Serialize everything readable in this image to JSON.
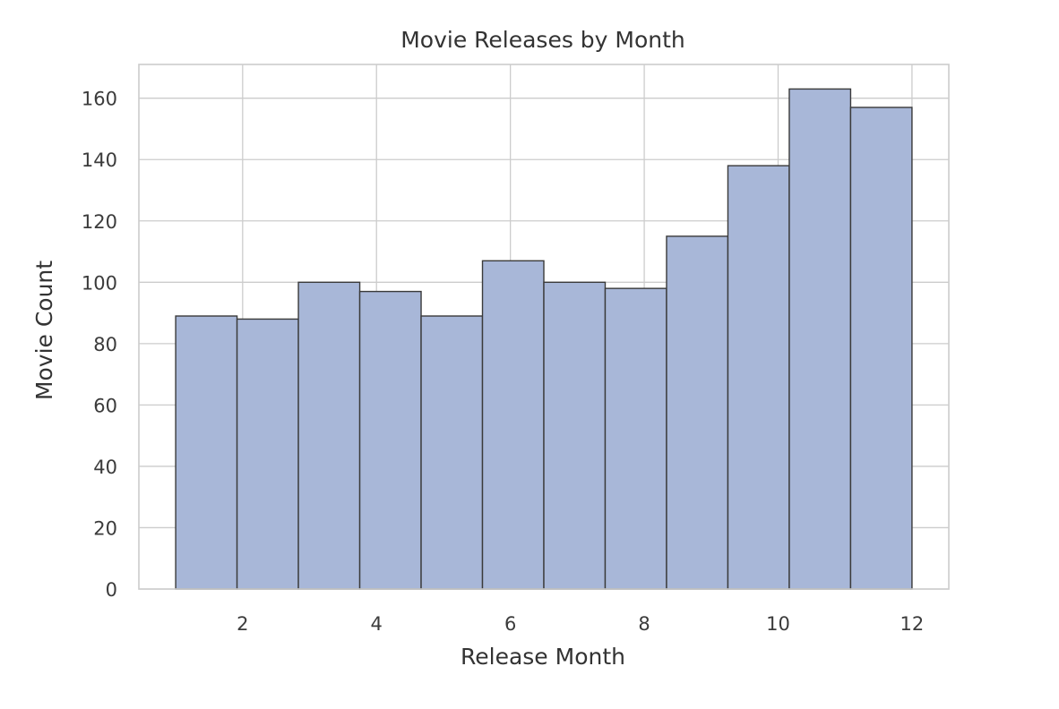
{
  "chart_data": {
    "type": "bar",
    "title": "Movie Releases by Month",
    "xlabel": "Release Month",
    "ylabel": "Movie Count",
    "xlim": [
      0.45,
      12.55
    ],
    "ylim": [
      0,
      171
    ],
    "xticks": [
      2,
      4,
      6,
      8,
      10,
      12
    ],
    "yticks": [
      0,
      20,
      40,
      60,
      80,
      100,
      120,
      140,
      160
    ],
    "bin_edges": [
      1.0,
      1.9167,
      2.8333,
      3.75,
      4.6667,
      5.5833,
      6.5,
      7.4167,
      8.3333,
      9.25,
      10.1667,
      11.0833,
      12.0
    ],
    "values": [
      89,
      88,
      100,
      97,
      89,
      107,
      100,
      98,
      115,
      138,
      163,
      157
    ],
    "bar_color": "#a8b7d8",
    "edge_color": "#3a3a3a",
    "grid": true,
    "legend": false
  }
}
